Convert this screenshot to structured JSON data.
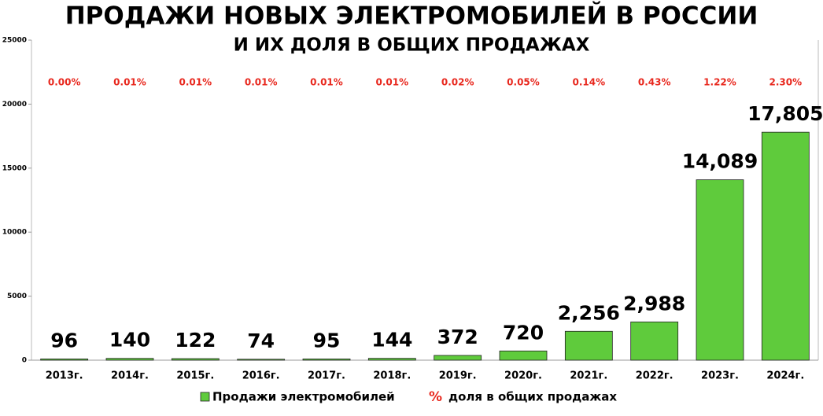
{
  "chart_data": {
    "type": "bar",
    "title": "ПРОДАЖИ НОВЫХ ЭЛЕКТРОМОБИЛЕЙ В РОССИИ",
    "subtitle": "И ИХ ДОЛЯ В ОБЩИХ ПРОДАЖАХ",
    "categories": [
      "2013г.",
      "2014г.",
      "2015г.",
      "2016г.",
      "2017г.",
      "2018г.",
      "2019г.",
      "2020г.",
      "2021г.",
      "2022г.",
      "2023г.",
      "2024г."
    ],
    "series": [
      {
        "name": "Продажи электромобилей",
        "color": "#5fcb3c",
        "values": [
          96,
          140,
          122,
          74,
          95,
          144,
          372,
          720,
          2256,
          2988,
          14089,
          17805
        ],
        "value_labels": [
          "96",
          "140",
          "122",
          "74",
          "95",
          "144",
          "372",
          "720",
          "2,256",
          "2,988",
          "14,089",
          "17,805"
        ]
      },
      {
        "name": "доля в общих продажах",
        "color": "#e8281e",
        "marker": "%",
        "values": [
          0.0,
          0.01,
          0.01,
          0.01,
          0.01,
          0.01,
          0.02,
          0.05,
          0.14,
          0.43,
          1.22,
          2.3
        ],
        "value_labels": [
          "0.00%",
          "0.01%",
          "0.01%",
          "0.01%",
          "0.01%",
          "0.01%",
          "0.02%",
          "0.05%",
          "0.14%",
          "0.43%",
          "1.22%",
          "2.30%"
        ]
      }
    ],
    "ylim": [
      0,
      25000
    ],
    "yticks": [
      0,
      5000,
      10000,
      15000,
      20000,
      25000
    ]
  }
}
